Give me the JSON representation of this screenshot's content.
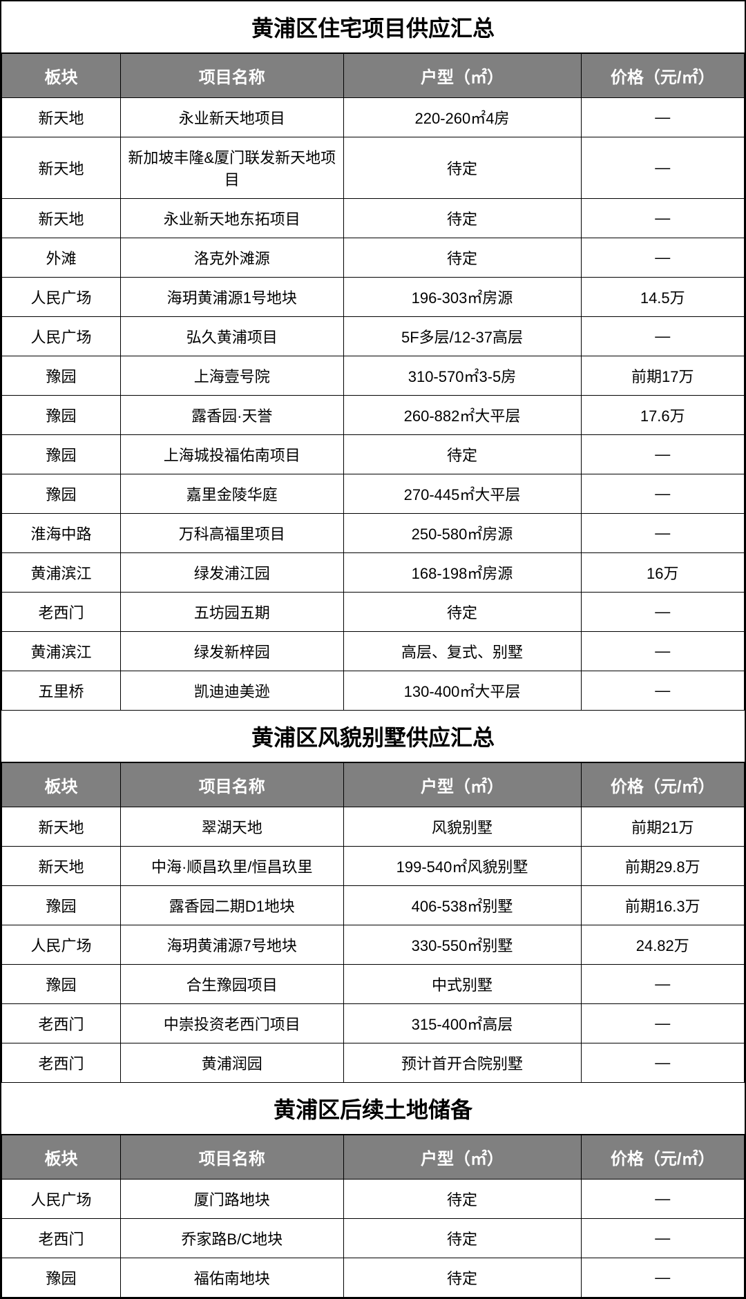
{
  "sections": [
    {
      "title": "黄浦区住宅项目供应汇总",
      "headers": [
        "板块",
        "项目名称",
        "户型（㎡）",
        "价格（元/㎡）"
      ],
      "rows": [
        [
          "新天地",
          "永业新天地项目",
          "220-260㎡4房",
          "—"
        ],
        [
          "新天地",
          "新加坡丰隆&厦门联发新天地项目",
          "待定",
          "—"
        ],
        [
          "新天地",
          "永业新天地东拓项目",
          "待定",
          "—"
        ],
        [
          "外滩",
          "洛克外滩源",
          "待定",
          "—"
        ],
        [
          "人民广场",
          "海玥黄浦源1号地块",
          "196-303㎡房源",
          "14.5万"
        ],
        [
          "人民广场",
          "弘久黄浦项目",
          "5F多层/12-37高层",
          "—"
        ],
        [
          "豫园",
          "上海壹号院",
          "310-570㎡3-5房",
          "前期17万"
        ],
        [
          "豫园",
          "露香园·天誉",
          "260-882㎡大平层",
          "17.6万"
        ],
        [
          "豫园",
          "上海城投福佑南项目",
          "待定",
          "—"
        ],
        [
          "豫园",
          "嘉里金陵华庭",
          "270-445㎡大平层",
          "—"
        ],
        [
          "淮海中路",
          "万科高福里项目",
          "250-580㎡房源",
          "—"
        ],
        [
          "黄浦滨江",
          "绿发浦江园",
          "168-198㎡房源",
          "16万"
        ],
        [
          "老西门",
          "五坊园五期",
          "待定",
          "—"
        ],
        [
          "黄浦滨江",
          "绿发新梓园",
          "高层、复式、别墅",
          "—"
        ],
        [
          "五里桥",
          "凯迪迪美逊",
          "130-400㎡大平层",
          "—"
        ]
      ]
    },
    {
      "title": "黄浦区风貌别墅供应汇总",
      "headers": [
        "板块",
        "项目名称",
        "户型（㎡）",
        "价格（元/㎡）"
      ],
      "rows": [
        [
          "新天地",
          "翠湖天地",
          "风貌别墅",
          "前期21万"
        ],
        [
          "新天地",
          "中海·顺昌玖里/恒昌玖里",
          "199-540㎡风貌别墅",
          "前期29.8万"
        ],
        [
          "豫园",
          "露香园二期D1地块",
          "406-538㎡别墅",
          "前期16.3万"
        ],
        [
          "人民广场",
          "海玥黄浦源7号地块",
          "330-550㎡别墅",
          "24.82万"
        ],
        [
          "豫园",
          "合生豫园项目",
          "中式别墅",
          "—"
        ],
        [
          "老西门",
          "中崇投资老西门项目",
          "315-400㎡高层",
          "—"
        ],
        [
          "老西门",
          "黄浦润园",
          "预计首开合院别墅",
          "—"
        ]
      ]
    },
    {
      "title": "黄浦区后续土地储备",
      "headers": [
        "板块",
        "项目名称",
        "户型（㎡）",
        "价格（元/㎡）"
      ],
      "rows": [
        [
          "人民广场",
          "厦门路地块",
          "待定",
          "—"
        ],
        [
          "老西门",
          "乔家路B/C地块",
          "待定",
          "—"
        ],
        [
          "豫园",
          "福佑南地块",
          "待定",
          "—"
        ]
      ]
    }
  ],
  "styling": {
    "header_bg": "#808080",
    "header_color": "#ffffff",
    "cell_bg": "#ffffff",
    "cell_color": "#000000",
    "border_color": "#000000",
    "title_fontsize": 32,
    "header_fontsize": 24,
    "cell_fontsize": 22,
    "col_widths": [
      "16%",
      "30%",
      "32%",
      "22%"
    ]
  }
}
